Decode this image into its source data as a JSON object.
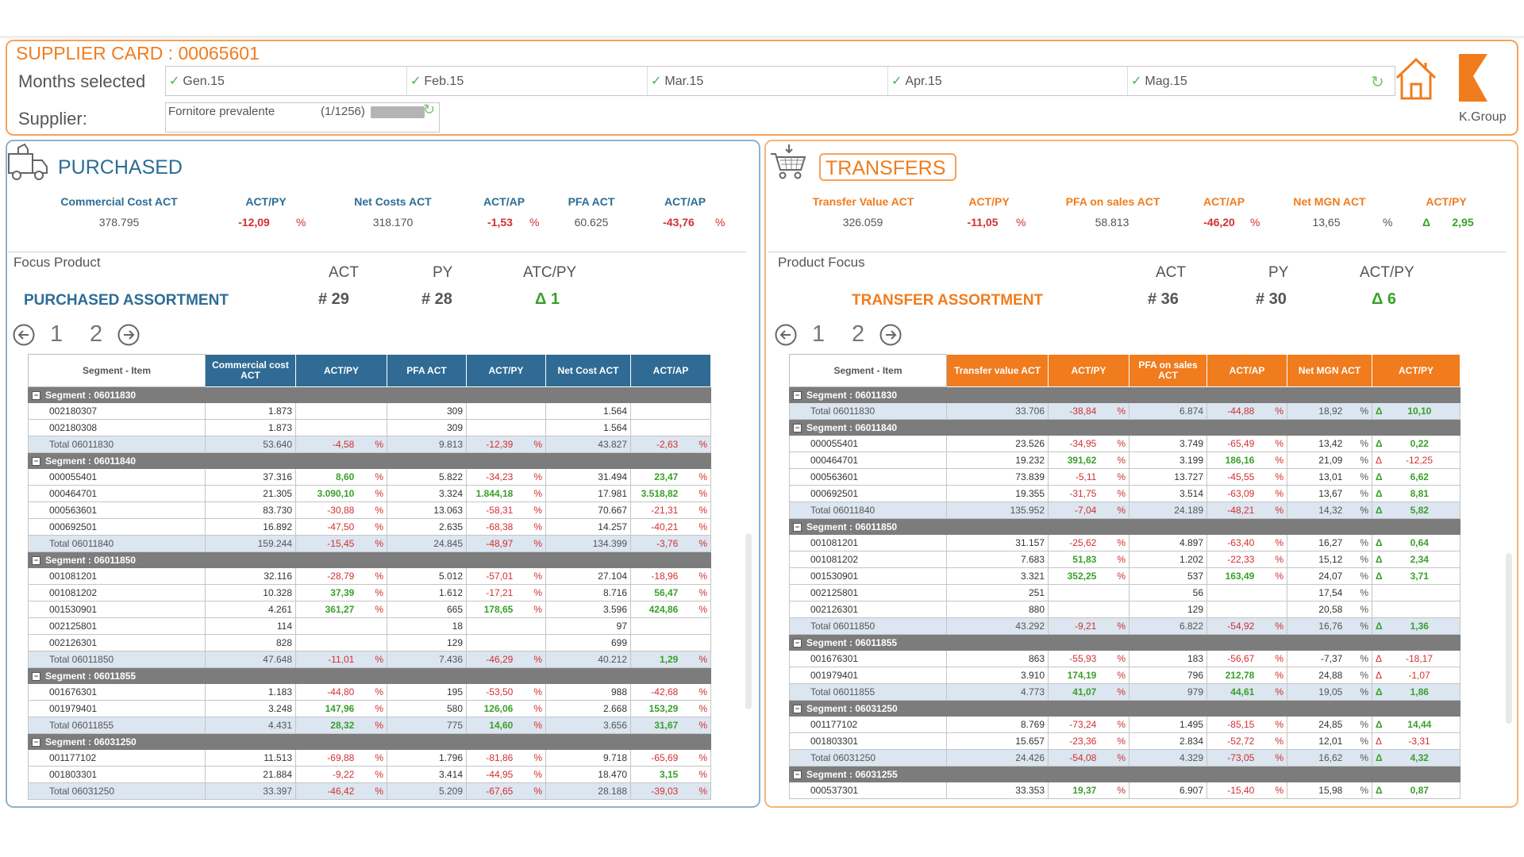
{
  "header": {
    "title": "SUPPLIER CARD : 00065601",
    "months_label": "Months selected",
    "supplier_label": "Supplier:",
    "months": [
      "Gen.15",
      "Feb.15",
      "Mar.15",
      "Apr.15",
      "Mag.15"
    ],
    "supplier_value": "Fornitore prevalente",
    "supplier_count": "(1/1256)",
    "logo_text": "K.Group"
  },
  "icons": {
    "home": "home-icon",
    "truck": "truck-icon",
    "cart": "cart-icon",
    "refresh": "refresh-icon",
    "prev": "arrow-left-circle-icon",
    "next": "arrow-right-circle-icon"
  },
  "colors": {
    "accent_orange": "#f07c1e",
    "accent_blue": "#2f6b94",
    "negative": "#d32f2f",
    "positive": "#3aa02a",
    "segment_row": "#7c7c7c",
    "total_row": "#dce6f1"
  },
  "purchased": {
    "title": "PURCHASED",
    "kpi": {
      "labels": [
        "Commercial Cost ACT",
        "ACT/PY",
        "Net Costs ACT",
        "ACT/AP",
        "PFA ACT",
        "ACT/AP"
      ],
      "values": [
        "378.795",
        "-12,09",
        "318.170",
        "-1,53",
        "60.625",
        "-43,76"
      ],
      "pct": "%"
    },
    "focus_label": "Focus Product",
    "col_act": "ACT",
    "col_py": "PY",
    "col_delta": "ATC/PY",
    "assortment": "PURCHASED ASSORTMENT",
    "act_count": "# 29",
    "py_count": "# 28",
    "delta": "Δ 1",
    "pages": [
      "1",
      "2"
    ],
    "table": {
      "headers": [
        "Segment - Item",
        "Commercial cost ACT",
        "ACT/PY",
        "PFA ACT",
        "ACT/PY",
        "Net Cost ACT",
        "ACT/AP"
      ],
      "rows": [
        {
          "type": "seg",
          "label": "Segment : 06011830"
        },
        {
          "type": "item",
          "label": "002180307",
          "v": [
            "1.873",
            "",
            "309",
            "",
            "1.564",
            ""
          ]
        },
        {
          "type": "item",
          "label": "002180308",
          "v": [
            "1.873",
            "",
            "309",
            "",
            "1.564",
            ""
          ]
        },
        {
          "type": "tot",
          "label": "Total 06011830",
          "v": [
            "53.640",
            "-4,58",
            "9.813",
            "-12,39",
            "43.827",
            "-2,63"
          ]
        },
        {
          "type": "seg",
          "label": "Segment : 06011840"
        },
        {
          "type": "item",
          "label": "000055401",
          "v": [
            "37.316",
            "8,60",
            "5.822",
            "-34,23",
            "31.494",
            "23,47"
          ]
        },
        {
          "type": "item",
          "label": "000464701",
          "v": [
            "21.305",
            "3.090,10",
            "3.324",
            "1.844,18",
            "17.981",
            "3.518,82"
          ]
        },
        {
          "type": "item",
          "label": "000563601",
          "v": [
            "83.730",
            "-30,88",
            "13.063",
            "-58,31",
            "70.667",
            "-21,31"
          ]
        },
        {
          "type": "item",
          "label": "000692501",
          "v": [
            "16.892",
            "-47,50",
            "2.635",
            "-68,38",
            "14.257",
            "-40,21"
          ]
        },
        {
          "type": "tot",
          "label": "Total 06011840",
          "v": [
            "159.244",
            "-15,45",
            "24.845",
            "-48,97",
            "134.399",
            "-3,76"
          ]
        },
        {
          "type": "seg",
          "label": "Segment : 06011850"
        },
        {
          "type": "item",
          "label": "001081201",
          "v": [
            "32.116",
            "-28,79",
            "5.012",
            "-57,01",
            "27.104",
            "-18,96"
          ]
        },
        {
          "type": "item",
          "label": "001081202",
          "v": [
            "10.328",
            "37,39",
            "1.612",
            "-17,21",
            "8.716",
            "56,47"
          ]
        },
        {
          "type": "item",
          "label": "001530901",
          "v": [
            "4.261",
            "361,27",
            "665",
            "178,65",
            "3.596",
            "424,86"
          ]
        },
        {
          "type": "item",
          "label": "002125801",
          "v": [
            "114",
            "",
            "18",
            "",
            "97",
            ""
          ]
        },
        {
          "type": "item",
          "label": "002126301",
          "v": [
            "828",
            "",
            "129",
            "",
            "699",
            ""
          ]
        },
        {
          "type": "tot",
          "label": "Total 06011850",
          "v": [
            "47.648",
            "-11,01",
            "7.436",
            "-46,29",
            "40.212",
            "1,29"
          ]
        },
        {
          "type": "seg",
          "label": "Segment : 06011855"
        },
        {
          "type": "item",
          "label": "001676301",
          "v": [
            "1.183",
            "-44,80",
            "195",
            "-53,50",
            "988",
            "-42,68"
          ]
        },
        {
          "type": "item",
          "label": "001979401",
          "v": [
            "3.248",
            "147,96",
            "580",
            "126,06",
            "2.668",
            "153,29"
          ]
        },
        {
          "type": "tot",
          "label": "Total 06011855",
          "v": [
            "4.431",
            "28,32",
            "775",
            "14,60",
            "3.656",
            "31,67"
          ]
        },
        {
          "type": "seg",
          "label": "Segment : 06031250"
        },
        {
          "type": "item",
          "label": "001177102",
          "v": [
            "11.513",
            "-69,88",
            "1.796",
            "-81,86",
            "9.718",
            "-65,69"
          ]
        },
        {
          "type": "item",
          "label": "001803301",
          "v": [
            "21.884",
            "-9,22",
            "3.414",
            "-44,95",
            "18.470",
            "3,15"
          ]
        },
        {
          "type": "tot",
          "label": "Total 06031250",
          "v": [
            "33.397",
            "-46,42",
            "5.209",
            "-67,65",
            "28.188",
            "-39,03"
          ]
        }
      ]
    }
  },
  "transfers": {
    "title": "TRANSFERS",
    "kpi": {
      "labels": [
        "Transfer Value ACT",
        "ACT/PY",
        "PFA on sales ACT",
        "ACT/AP",
        "Net MGN ACT",
        "ACT/PY"
      ],
      "values": [
        "326.059",
        "-11,05",
        "58.813",
        "-46,20",
        "13,65",
        "2,95"
      ],
      "pct": "%",
      "delta": "Δ"
    },
    "focus_label": "Product Focus",
    "col_act": "ACT",
    "col_py": "PY",
    "col_delta": "ACT/PY",
    "assortment": "TRANSFER ASSORTMENT",
    "act_count": "# 36",
    "py_count": "# 30",
    "delta": "Δ 6",
    "pages": [
      "1",
      "2"
    ],
    "table": {
      "headers": [
        "Segment - Item",
        "Transfer value ACT",
        "ACT/PY",
        "PFA on sales ACT",
        "ACT/AP",
        "Net MGN ACT",
        "ACT/PY"
      ],
      "rows": [
        {
          "type": "seg",
          "label": "Segment : 06011830"
        },
        {
          "type": "tot",
          "label": "Total 06011830",
          "v": [
            "33.706",
            "-38,84",
            "6.874",
            "-44,88",
            "18,92",
            "10,10"
          ]
        },
        {
          "type": "seg",
          "label": "Segment : 06011840"
        },
        {
          "type": "item",
          "label": "000055401",
          "v": [
            "23.526",
            "-34,95",
            "3.749",
            "-65,49",
            "13,42",
            "0,22"
          ]
        },
        {
          "type": "item",
          "label": "000464701",
          "v": [
            "19.232",
            "391,62",
            "3.199",
            "186,16",
            "21,09",
            "-12,25"
          ]
        },
        {
          "type": "item",
          "label": "000563601",
          "v": [
            "73.839",
            "-5,11",
            "13.727",
            "-45,55",
            "13,01",
            "6,62"
          ]
        },
        {
          "type": "item",
          "label": "000692501",
          "v": [
            "19.355",
            "-31,75",
            "3.514",
            "-63,09",
            "13,67",
            "8,81"
          ]
        },
        {
          "type": "tot",
          "label": "Total 06011840",
          "v": [
            "135.952",
            "-7,04",
            "24.189",
            "-48,21",
            "14,32",
            "5,82"
          ]
        },
        {
          "type": "seg",
          "label": "Segment : 06011850"
        },
        {
          "type": "item",
          "label": "001081201",
          "v": [
            "31.157",
            "-25,62",
            "4.897",
            "-63,40",
            "16,27",
            "0,64"
          ]
        },
        {
          "type": "item",
          "label": "001081202",
          "v": [
            "7.683",
            "51,83",
            "1.202",
            "-22,33",
            "15,12",
            "2,34"
          ]
        },
        {
          "type": "item",
          "label": "001530901",
          "v": [
            "3.321",
            "352,25",
            "537",
            "163,49",
            "24,07",
            "3,71"
          ]
        },
        {
          "type": "item",
          "label": "002125801",
          "v": [
            "251",
            "",
            "56",
            "",
            "17,54",
            ""
          ]
        },
        {
          "type": "item",
          "label": "002126301",
          "v": [
            "880",
            "",
            "129",
            "",
            "20,58",
            ""
          ]
        },
        {
          "type": "tot",
          "label": "Total 06011850",
          "v": [
            "43.292",
            "-9,21",
            "6.822",
            "-54,92",
            "16,76",
            "1,36"
          ]
        },
        {
          "type": "seg",
          "label": "Segment : 06011855"
        },
        {
          "type": "item",
          "label": "001676301",
          "v": [
            "863",
            "-55,93",
            "183",
            "-56,67",
            "-7,37",
            "-18,17"
          ]
        },
        {
          "type": "item",
          "label": "001979401",
          "v": [
            "3.910",
            "174,19",
            "796",
            "212,78",
            "24,88",
            "-1,07"
          ]
        },
        {
          "type": "tot",
          "label": "Total 06011855",
          "v": [
            "4.773",
            "41,07",
            "979",
            "44,61",
            "19,05",
            "1,86"
          ]
        },
        {
          "type": "seg",
          "label": "Segment : 06031250"
        },
        {
          "type": "item",
          "label": "001177102",
          "v": [
            "8.769",
            "-73,24",
            "1.495",
            "-85,15",
            "24,85",
            "14,44"
          ]
        },
        {
          "type": "item",
          "label": "001803301",
          "v": [
            "15.657",
            "-23,36",
            "2.834",
            "-52,72",
            "12,01",
            "-3,31"
          ]
        },
        {
          "type": "tot",
          "label": "Total 06031250",
          "v": [
            "24.426",
            "-54,08",
            "4.329",
            "-73,05",
            "16,62",
            "4,32"
          ]
        },
        {
          "type": "seg",
          "label": "Segment : 06031255"
        },
        {
          "type": "item",
          "label": "000537301",
          "v": [
            "33.353",
            "19,37",
            "6.907",
            "-15,40",
            "15,98",
            "0,87"
          ]
        }
      ]
    }
  }
}
